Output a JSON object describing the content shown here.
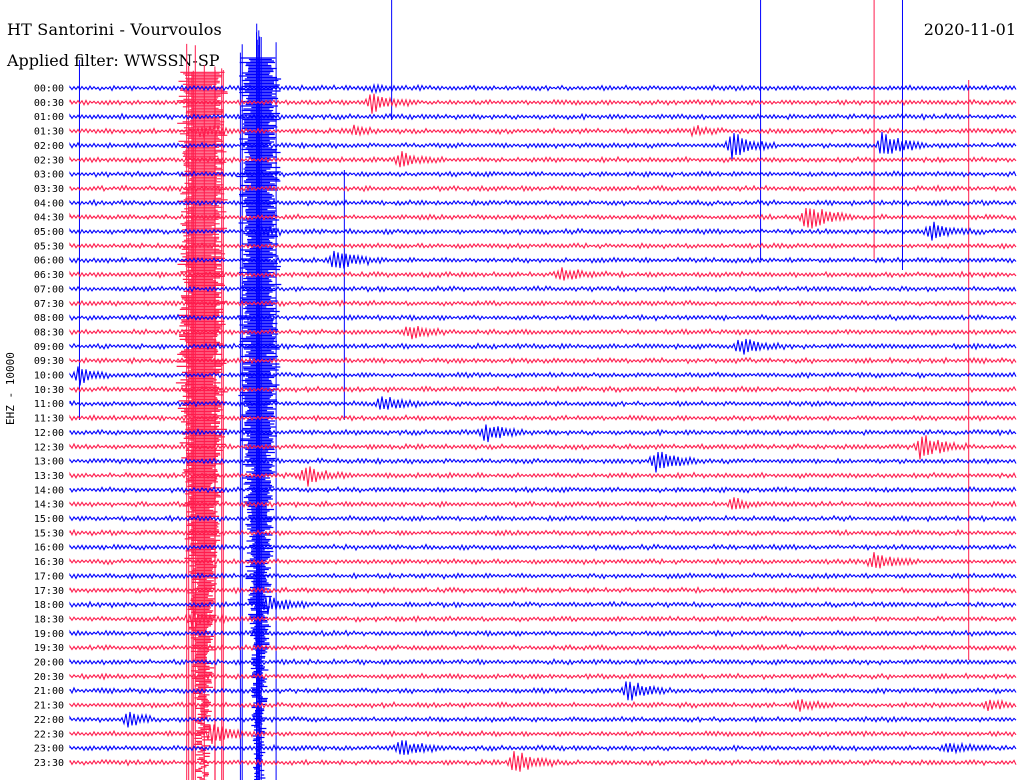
{
  "header": {
    "station": "HT Santorini - Vourvoulos",
    "filter": "Applied filter: WWSSN-SP",
    "date": "2020-11-01"
  },
  "chart_data": {
    "type": "line",
    "title": "HT Santorini - Vourvoulos",
    "subtitle": "Applied filter: WWSSN-SP",
    "ylabel": "EHZ - 10000",
    "xlabel": "",
    "row_labels": [
      "00:00",
      "00:30",
      "01:00",
      "01:30",
      "02:00",
      "02:30",
      "03:00",
      "03:30",
      "04:00",
      "04:30",
      "05:00",
      "05:30",
      "06:00",
      "06:30",
      "07:00",
      "07:30",
      "08:00",
      "08:30",
      "09:00",
      "09:30",
      "10:00",
      "10:30",
      "11:00",
      "11:30",
      "12:00",
      "12:30",
      "13:00",
      "13:30",
      "14:00",
      "14:30",
      "15:00",
      "15:30",
      "16:00",
      "16:30",
      "17:00",
      "17:30",
      "18:00",
      "18:30",
      "19:00",
      "19:30",
      "20:00",
      "20:30",
      "21:00",
      "21:30",
      "22:00",
      "22:30",
      "23:00",
      "23:30"
    ],
    "colors": {
      "odd": "#ff1c4d",
      "even": "#0000ff"
    },
    "events": [
      {
        "row": 0,
        "x": 0.32,
        "amp": 3,
        "width": 0.02
      },
      {
        "row": 1,
        "x": 0.32,
        "amp": 10,
        "width": 0.03
      },
      {
        "row": 3,
        "x": 0.14,
        "amp": 6,
        "width": 0.03
      },
      {
        "row": 3,
        "x": 0.3,
        "amp": 5,
        "width": 0.02
      },
      {
        "row": 3,
        "x": 0.66,
        "amp": 5,
        "width": 0.02
      },
      {
        "row": 4,
        "x": 0.7,
        "amp": 14,
        "width": 0.03
      },
      {
        "row": 4,
        "x": 0.86,
        "amp": 14,
        "width": 0.03
      },
      {
        "row": 5,
        "x": 0.35,
        "amp": 7,
        "width": 0.03
      },
      {
        "row": 9,
        "x": 0.78,
        "amp": 14,
        "width": 0.03
      },
      {
        "row": 10,
        "x": 0.2,
        "amp": 6,
        "width": 0.02
      },
      {
        "row": 10,
        "x": 0.91,
        "amp": 9,
        "width": 0.03
      },
      {
        "row": 12,
        "x": 0.28,
        "amp": 12,
        "width": 0.03
      },
      {
        "row": 13,
        "x": 0.52,
        "amp": 7,
        "width": 0.03
      },
      {
        "row": 17,
        "x": 0.36,
        "amp": 7,
        "width": 0.03
      },
      {
        "row": 18,
        "x": 0.71,
        "amp": 8,
        "width": 0.03
      },
      {
        "row": 20,
        "x": 0.01,
        "amp": 10,
        "width": 0.02
      },
      {
        "row": 22,
        "x": 0.33,
        "amp": 8,
        "width": 0.03
      },
      {
        "row": 24,
        "x": 0.44,
        "amp": 9,
        "width": 0.03
      },
      {
        "row": 25,
        "x": 0.9,
        "amp": 14,
        "width": 0.03
      },
      {
        "row": 26,
        "x": 0.62,
        "amp": 11,
        "width": 0.03
      },
      {
        "row": 27,
        "x": 0.25,
        "amp": 10,
        "width": 0.03
      },
      {
        "row": 29,
        "x": 0.7,
        "amp": 6,
        "width": 0.02
      },
      {
        "row": 33,
        "x": 0.85,
        "amp": 8,
        "width": 0.03
      },
      {
        "row": 36,
        "x": 0.21,
        "amp": 9,
        "width": 0.03
      },
      {
        "row": 37,
        "x": 0.13,
        "amp": 8,
        "width": 0.03
      },
      {
        "row": 42,
        "x": 0.59,
        "amp": 10,
        "width": 0.03
      },
      {
        "row": 43,
        "x": 0.77,
        "amp": 6,
        "width": 0.02
      },
      {
        "row": 43,
        "x": 0.97,
        "amp": 7,
        "width": 0.02
      },
      {
        "row": 44,
        "x": 0.06,
        "amp": 9,
        "width": 0.02
      },
      {
        "row": 45,
        "x": 0.15,
        "amp": 10,
        "width": 0.03
      },
      {
        "row": 46,
        "x": 0.35,
        "amp": 8,
        "width": 0.03
      },
      {
        "row": 46,
        "x": 0.93,
        "amp": 5,
        "width": 0.03
      },
      {
        "row": 47,
        "x": 0.47,
        "amp": 12,
        "width": 0.03
      }
    ],
    "large_bursts": [
      {
        "color": "odd",
        "row_start": 1,
        "row_end": 47,
        "x": 0.14,
        "half_width": 0.024
      },
      {
        "color": "even",
        "row_start": 0,
        "row_end": 47,
        "x": 0.2,
        "half_width": 0.02
      }
    ]
  }
}
